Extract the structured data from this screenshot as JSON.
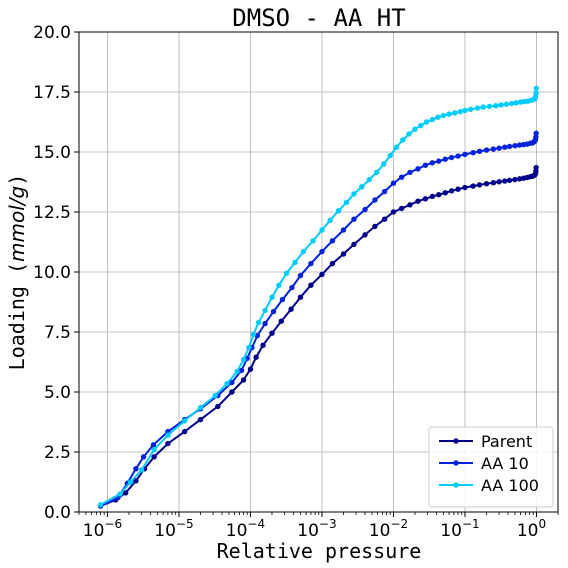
{
  "chart_data": {
    "type": "line",
    "title": "DMSO - AA HT",
    "xlabel": "Relative pressure",
    "ylabel_prefix": "Loading (",
    "ylabel_unit": "mmol/g",
    "ylabel_suffix": ")",
    "x_scale": "log",
    "xlim": [
      4e-07,
      2
    ],
    "ylim": [
      0,
      20
    ],
    "grid": true,
    "legend_position": "bottom-right",
    "x_ticks": [
      {
        "value": 1e-06,
        "base": "10",
        "exp": "−6"
      },
      {
        "value": 1e-05,
        "base": "10",
        "exp": "−5"
      },
      {
        "value": 0.0001,
        "base": "10",
        "exp": "−4"
      },
      {
        "value": 0.001,
        "base": "10",
        "exp": "−3"
      },
      {
        "value": 0.01,
        "base": "10",
        "exp": "−2"
      },
      {
        "value": 0.1,
        "base": "10",
        "exp": "−1"
      },
      {
        "value": 1,
        "base": "10",
        "exp": "0"
      }
    ],
    "y_ticks": [
      {
        "value": 0,
        "label": "0.0"
      },
      {
        "value": 2.5,
        "label": "2.5"
      },
      {
        "value": 5,
        "label": "5.0"
      },
      {
        "value": 7.5,
        "label": "7.5"
      },
      {
        "value": 10,
        "label": "10.0"
      },
      {
        "value": 12.5,
        "label": "12.5"
      },
      {
        "value": 15,
        "label": "15.0"
      },
      {
        "value": 17.5,
        "label": "17.5"
      },
      {
        "value": 20,
        "label": "20.0"
      }
    ],
    "series": [
      {
        "name": "Parent",
        "color": "#00008b",
        "x": [
          8e-07,
          1.3e-06,
          1.8e-06,
          2.5e-06,
          3.3e-06,
          4.5e-06,
          7e-06,
          1.2e-05,
          2e-05,
          3.5e-05,
          5.5e-05,
          8e-05,
          0.0001,
          0.00012,
          0.00015,
          0.0002,
          0.00027,
          0.00037,
          0.0005,
          0.0007,
          0.001,
          0.0014,
          0.002,
          0.0028,
          0.004,
          0.0055,
          0.0075,
          0.01,
          0.013,
          0.017,
          0.022,
          0.028,
          0.035,
          0.043,
          0.053,
          0.065,
          0.08,
          0.1,
          0.13,
          0.16,
          0.2,
          0.25,
          0.3,
          0.36,
          0.42,
          0.5,
          0.58,
          0.66,
          0.74,
          0.82,
          0.88,
          0.92,
          0.95,
          0.97,
          0.98,
          0.99
        ],
        "y": [
          0.25,
          0.5,
          0.8,
          1.3,
          1.8,
          2.3,
          2.85,
          3.35,
          3.85,
          4.4,
          5.0,
          5.5,
          5.95,
          6.45,
          6.95,
          7.45,
          7.95,
          8.45,
          8.95,
          9.45,
          9.9,
          10.35,
          10.75,
          11.15,
          11.55,
          11.9,
          12.2,
          12.5,
          12.65,
          12.8,
          12.95,
          13.05,
          13.15,
          13.22,
          13.3,
          13.38,
          13.45,
          13.52,
          13.58,
          13.63,
          13.68,
          13.72,
          13.76,
          13.79,
          13.82,
          13.85,
          13.88,
          13.91,
          13.94,
          13.97,
          13.99,
          14.02,
          14.05,
          14.1,
          14.2,
          14.35
        ]
      },
      {
        "name": "AA 10",
        "color": "#0022dd",
        "x": [
          8e-07,
          1.4e-06,
          1.9e-06,
          2.5e-06,
          3.2e-06,
          4.4e-06,
          7e-06,
          1.2e-05,
          2e-05,
          3.5e-05,
          5.5e-05,
          7.5e-05,
          9e-05,
          0.000105,
          0.000125,
          0.00016,
          0.00021,
          0.00028,
          0.00038,
          0.0005,
          0.0007,
          0.001,
          0.0014,
          0.002,
          0.0028,
          0.004,
          0.0055,
          0.0075,
          0.01,
          0.013,
          0.017,
          0.022,
          0.028,
          0.035,
          0.043,
          0.053,
          0.065,
          0.08,
          0.1,
          0.13,
          0.16,
          0.2,
          0.25,
          0.3,
          0.36,
          0.42,
          0.5,
          0.58,
          0.66,
          0.74,
          0.82,
          0.88,
          0.92,
          0.95,
          0.97,
          0.98,
          0.99
        ],
        "y": [
          0.25,
          0.6,
          1.2,
          1.8,
          2.3,
          2.8,
          3.35,
          3.85,
          4.3,
          4.85,
          5.4,
          5.9,
          6.4,
          6.85,
          7.35,
          7.85,
          8.35,
          8.85,
          9.35,
          9.85,
          10.35,
          10.85,
          11.3,
          11.75,
          12.2,
          12.6,
          13.0,
          13.35,
          13.7,
          13.95,
          14.15,
          14.3,
          14.45,
          14.55,
          14.62,
          14.7,
          14.77,
          14.83,
          14.9,
          14.97,
          15.03,
          15.08,
          15.12,
          15.16,
          15.2,
          15.23,
          15.26,
          15.29,
          15.31,
          15.33,
          15.36,
          15.38,
          15.42,
          15.46,
          15.52,
          15.62,
          15.78
        ]
      },
      {
        "name": "AA 100",
        "color": "#00ccff",
        "x": [
          8e-07,
          1.5e-06,
          2.1e-06,
          3e-06,
          4.5e-06,
          7e-06,
          1.2e-05,
          2e-05,
          3.2e-05,
          4.7e-05,
          6.5e-05,
          8e-05,
          9.5e-05,
          0.00011,
          0.00013,
          0.00016,
          0.0002,
          0.00025,
          0.00032,
          0.00042,
          0.00055,
          0.00075,
          0.001,
          0.0013,
          0.0017,
          0.0022,
          0.0028,
          0.0036,
          0.0046,
          0.0058,
          0.0073,
          0.009,
          0.011,
          0.0135,
          0.0165,
          0.02,
          0.024,
          0.029,
          0.035,
          0.042,
          0.05,
          0.06,
          0.072,
          0.086,
          0.1,
          0.12,
          0.15,
          0.18,
          0.22,
          0.27,
          0.32,
          0.38,
          0.45,
          0.52,
          0.6,
          0.68,
          0.76,
          0.84,
          0.9,
          0.94,
          0.97,
          0.985,
          0.995
        ],
        "y": [
          0.3,
          0.75,
          1.25,
          1.75,
          2.6,
          3.2,
          3.8,
          4.35,
          4.85,
          5.35,
          5.85,
          6.35,
          6.85,
          7.4,
          7.9,
          8.4,
          8.95,
          9.45,
          9.95,
          10.4,
          10.85,
          11.3,
          11.75,
          12.15,
          12.55,
          12.9,
          13.25,
          13.55,
          13.85,
          14.15,
          14.5,
          14.85,
          15.2,
          15.5,
          15.75,
          15.95,
          16.1,
          16.25,
          16.35,
          16.45,
          16.52,
          16.58,
          16.63,
          16.68,
          16.73,
          16.78,
          16.83,
          16.87,
          16.9,
          16.93,
          16.96,
          16.99,
          17.02,
          17.05,
          17.08,
          17.1,
          17.12,
          17.15,
          17.18,
          17.22,
          17.3,
          17.45,
          17.65
        ]
      }
    ]
  }
}
